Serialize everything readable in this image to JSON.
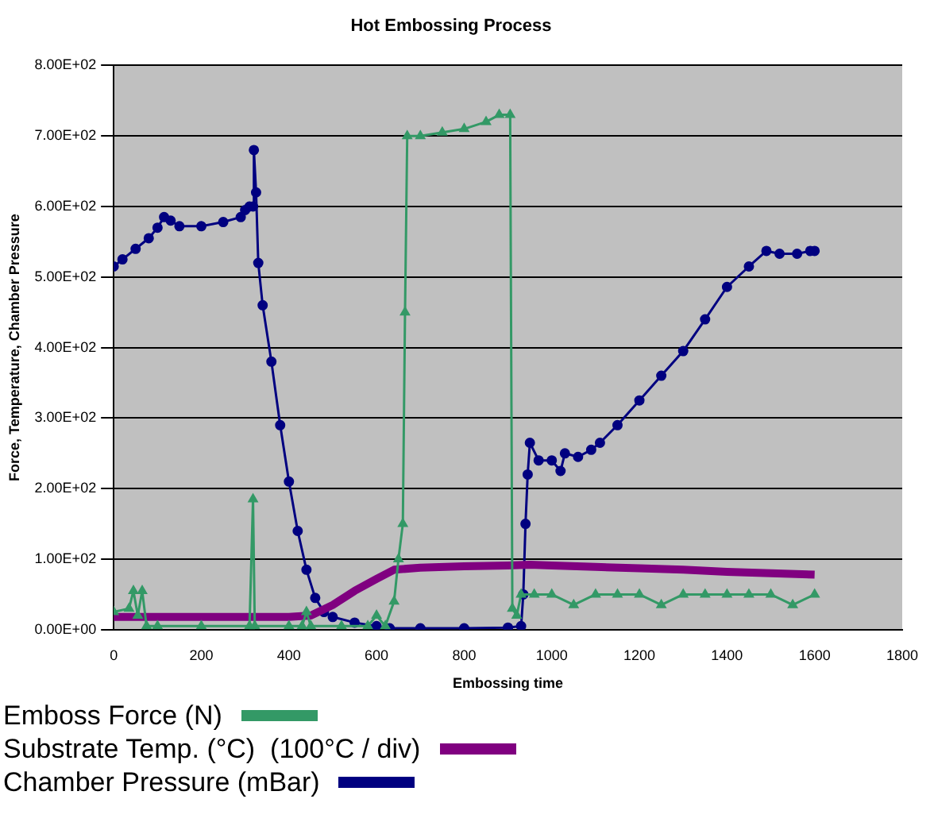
{
  "chart_data": {
    "type": "line",
    "title": "Hot Embossing Process",
    "xlabel": "Embossing time",
    "ylabel": "Force, Temperature, Chamber Pressure",
    "xlim": [
      0,
      1800
    ],
    "xticks": [
      0,
      200,
      400,
      600,
      800,
      1000,
      1200,
      1400,
      1600,
      1800
    ],
    "ylim": [
      0,
      800
    ],
    "yticks": [
      {
        "value": 0,
        "label": "0.00E+00"
      },
      {
        "value": 100,
        "label": "1.00E+02"
      },
      {
        "value": 200,
        "label": "2.00E+02"
      },
      {
        "value": 300,
        "label": "3.00E+02"
      },
      {
        "value": 400,
        "label": "4.00E+02"
      },
      {
        "value": 500,
        "label": "5.00E+02"
      },
      {
        "value": 600,
        "label": "6.00E+02"
      },
      {
        "value": 700,
        "label": "7.00E+02"
      },
      {
        "value": 800,
        "label": "8.00E+02"
      }
    ],
    "grid": "y",
    "legend": "bottom",
    "line_style": "solid",
    "series": [
      {
        "name": "Emboss Force (N)",
        "color": "#339966",
        "marker": "triangle",
        "x": [
          0,
          35,
          45,
          55,
          65,
          75,
          100,
          200,
          310,
          318,
          322,
          400,
          430,
          440,
          450,
          520,
          580,
          600,
          620,
          640,
          650,
          660,
          665,
          670,
          700,
          750,
          800,
          850,
          880,
          905,
          910,
          920,
          930,
          960,
          1000,
          1050,
          1100,
          1150,
          1200,
          1250,
          1300,
          1350,
          1400,
          1450,
          1500,
          1550,
          1600
        ],
        "values": [
          25,
          30,
          55,
          20,
          55,
          5,
          5,
          5,
          5,
          185,
          5,
          5,
          5,
          25,
          5,
          5,
          5,
          20,
          5,
          40,
          100,
          150,
          450,
          700,
          700,
          705,
          710,
          720,
          730,
          730,
          30,
          20,
          50,
          50,
          50,
          35,
          50,
          50,
          50,
          35,
          50,
          50,
          50,
          50,
          50,
          35,
          50
        ]
      },
      {
        "name": "Substrate Temp. (°C)  (100°C / div)",
        "color": "#800080",
        "marker": "none",
        "x": [
          0,
          100,
          200,
          300,
          400,
          450,
          500,
          550,
          600,
          640,
          700,
          800,
          900,
          950,
          1000,
          1100,
          1200,
          1300,
          1400,
          1500,
          1600
        ],
        "values": [
          18,
          18,
          18,
          18,
          18,
          20,
          35,
          55,
          72,
          85,
          88,
          90,
          91,
          92,
          91,
          89,
          87,
          85,
          82,
          80,
          78
        ]
      },
      {
        "name": "Chamber Pressure (mBar)",
        "color": "#000080",
        "marker": "circle",
        "x": [
          0,
          20,
          50,
          80,
          100,
          115,
          130,
          150,
          200,
          250,
          290,
          300,
          310,
          318,
          320,
          325,
          330,
          340,
          360,
          380,
          400,
          420,
          440,
          460,
          480,
          500,
          550,
          600,
          630,
          700,
          800,
          900,
          930,
          935,
          940,
          945,
          950,
          970,
          1000,
          1020,
          1030,
          1060,
          1090,
          1110,
          1150,
          1200,
          1250,
          1300,
          1350,
          1400,
          1450,
          1490,
          1520,
          1560,
          1590,
          1600
        ],
        "values": [
          515,
          525,
          540,
          555,
          570,
          585,
          580,
          572,
          572,
          578,
          585,
          595,
          600,
          600,
          680,
          620,
          520,
          460,
          380,
          290,
          210,
          140,
          85,
          45,
          25,
          18,
          10,
          5,
          2,
          2,
          2,
          3,
          5,
          50,
          150,
          220,
          265,
          240,
          240,
          225,
          250,
          245,
          255,
          265,
          290,
          325,
          360,
          395,
          440,
          486,
          515,
          537,
          533,
          533,
          537,
          537
        ]
      }
    ]
  }
}
